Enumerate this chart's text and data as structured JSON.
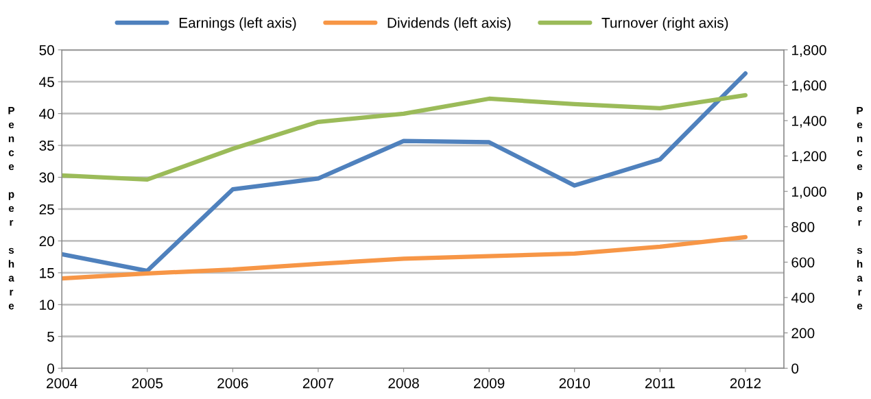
{
  "chart_data": {
    "type": "line",
    "ylabel": "Pence per share",
    "y2label": "Pence per share",
    "x": [
      2004,
      2005,
      2006,
      2007,
      2008,
      2009,
      2010,
      2011,
      2012
    ],
    "xlim": [
      2004,
      2012.45
    ],
    "xticks": [
      2004,
      2005,
      2006,
      2007,
      2008,
      2009,
      2010,
      2011,
      2012
    ],
    "ylim": [
      0,
      50
    ],
    "yticks": [
      0,
      5,
      10,
      15,
      20,
      25,
      30,
      35,
      40,
      45,
      50
    ],
    "y2lim": [
      0,
      1800
    ],
    "y2ticks": [
      0,
      {
        "value": 200,
        "label": "200"
      },
      {
        "value": 400,
        "label": "400"
      },
      {
        "value": 600,
        "label": "600"
      },
      {
        "value": 800,
        "label": "800"
      },
      {
        "value": 1000,
        "label": "1,000"
      },
      {
        "value": 1200,
        "label": "1,200"
      },
      {
        "value": 1400,
        "label": "1,400"
      },
      {
        "value": 1600,
        "label": "1,600"
      },
      {
        "value": 1800,
        "label": "1,800"
      }
    ],
    "grid": "y",
    "legend": "top",
    "marker": "none",
    "line_style": "solid",
    "series": [
      {
        "name": "Earnings (left axis)",
        "color": "#4f81bd",
        "values": [
          17.9,
          15.3,
          28.1,
          29.8,
          35.7,
          35.5,
          28.7,
          32.8,
          46.3
        ]
      },
      {
        "name": "Dividends (left axis)",
        "color": "#f79646",
        "values": [
          14.1,
          14.9,
          15.5,
          16.4,
          17.2,
          17.6,
          18.0,
          19.1,
          20.6
        ]
      },
      {
        "name": "Turnover (right axis)",
        "color": "#9bbb59",
        "axis": "y2",
        "values": [
          1090,
          1067,
          1241,
          1393,
          1439,
          1524,
          1493,
          1470,
          1544
        ]
      }
    ]
  }
}
